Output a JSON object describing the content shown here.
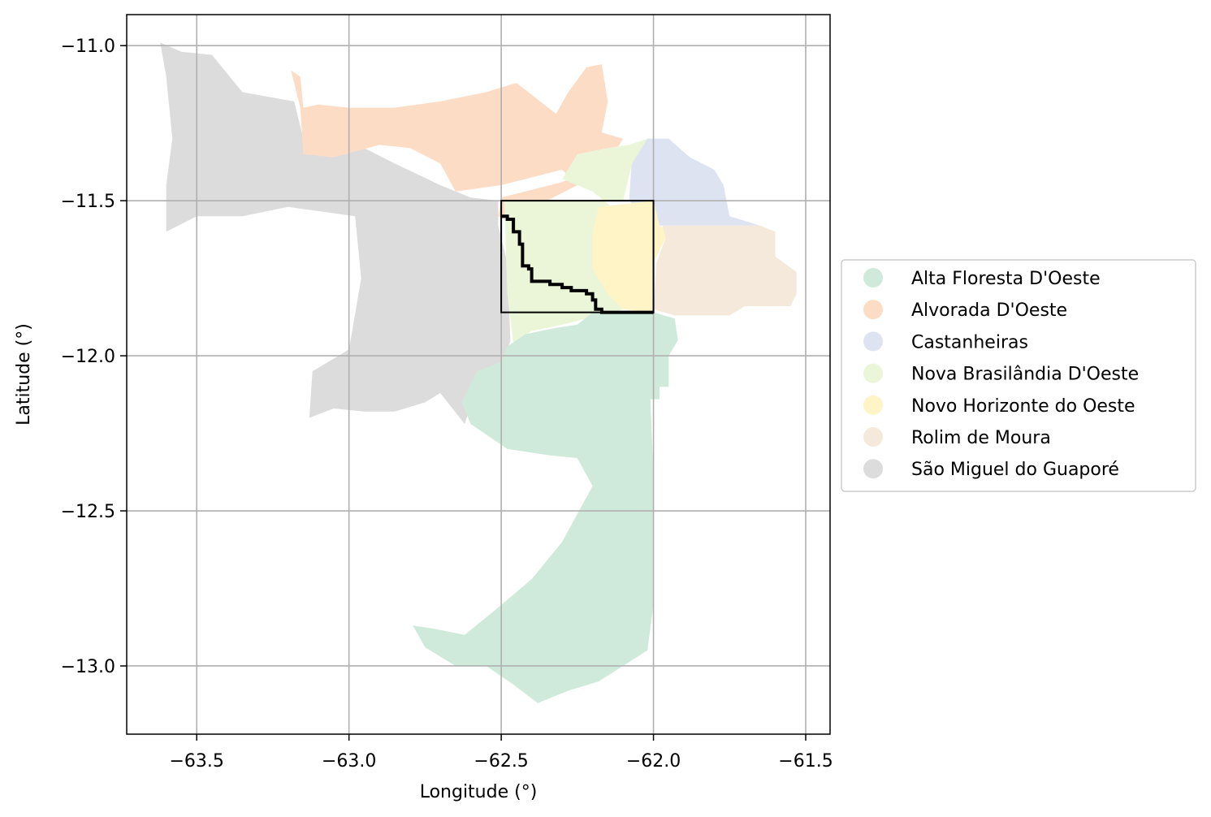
{
  "chart_data": {
    "type": "map",
    "xlabel": "Longitude (°)",
    "ylabel": "Latitude (°)",
    "xlim": [
      -63.73,
      -61.42
    ],
    "ylim": [
      -13.22,
      -10.9
    ],
    "xticks": [
      -63.5,
      -63.0,
      -62.5,
      -62.0,
      -61.5
    ],
    "yticks": [
      -11.0,
      -11.5,
      -12.0,
      -12.5,
      -13.0
    ],
    "xtick_labels": [
      "−63.5",
      "−63.0",
      "−62.5",
      "−62.0",
      "−61.5"
    ],
    "ytick_labels": [
      "−11.0",
      "−11.5",
      "−12.0",
      "−12.5",
      "−13.0"
    ],
    "grid": true,
    "legend_position": "right",
    "legend": [
      {
        "name": "Alta Floresta D'Oeste",
        "color": "#cfeadb"
      },
      {
        "name": "Alvorada D'Oeste",
        "color": "#fcdcc5"
      },
      {
        "name": "Castanheiras",
        "color": "#dde3f1"
      },
      {
        "name": "Nova Brasilândia D'Oeste",
        "color": "#ebf6d9"
      },
      {
        "name": "Novo Horizonte do Oeste",
        "color": "#fff4c6"
      },
      {
        "name": "Rolim de Moura",
        "color": "#f4e9db"
      },
      {
        "name": "São Miguel do Guaporé",
        "color": "#dcdcdc"
      }
    ],
    "regions": [
      {
        "name": "São Miguel do Guaporé",
        "color": "#dcdcdc",
        "polygon": [
          [
            -63.62,
            -10.99
          ],
          [
            -63.55,
            -11.02
          ],
          [
            -63.45,
            -11.03
          ],
          [
            -63.35,
            -11.15
          ],
          [
            -63.18,
            -11.18
          ],
          [
            -63.15,
            -11.3
          ],
          [
            -63.05,
            -11.35
          ],
          [
            -62.95,
            -11.33
          ],
          [
            -62.85,
            -11.38
          ],
          [
            -62.7,
            -11.45
          ],
          [
            -62.6,
            -11.49
          ],
          [
            -62.51,
            -11.5
          ],
          [
            -62.51,
            -11.58
          ],
          [
            -62.48,
            -11.7
          ],
          [
            -62.47,
            -11.95
          ],
          [
            -62.5,
            -12.05
          ],
          [
            -62.58,
            -12.1
          ],
          [
            -62.62,
            -12.22
          ],
          [
            -62.7,
            -12.12
          ],
          [
            -62.75,
            -12.15
          ],
          [
            -62.85,
            -12.18
          ],
          [
            -62.95,
            -12.18
          ],
          [
            -63.05,
            -12.17
          ],
          [
            -63.13,
            -12.2
          ],
          [
            -63.12,
            -12.05
          ],
          [
            -63.0,
            -11.98
          ],
          [
            -62.96,
            -11.75
          ],
          [
            -62.98,
            -11.55
          ],
          [
            -63.2,
            -11.52
          ],
          [
            -63.35,
            -11.55
          ],
          [
            -63.5,
            -11.55
          ],
          [
            -63.6,
            -11.6
          ],
          [
            -63.6,
            -11.45
          ],
          [
            -63.58,
            -11.3
          ],
          [
            -63.6,
            -11.1
          ]
        ]
      },
      {
        "name": "Alvorada D'Oeste",
        "color": "#fcdcc5",
        "polygon": [
          [
            -63.19,
            -11.08
          ],
          [
            -63.16,
            -11.1
          ],
          [
            -63.15,
            -11.2
          ],
          [
            -63.1,
            -11.19
          ],
          [
            -63.0,
            -11.2
          ],
          [
            -62.85,
            -11.2
          ],
          [
            -62.7,
            -11.18
          ],
          [
            -62.55,
            -11.15
          ],
          [
            -62.45,
            -11.12
          ],
          [
            -62.32,
            -11.22
          ],
          [
            -62.28,
            -11.15
          ],
          [
            -62.22,
            -11.07
          ],
          [
            -62.17,
            -11.06
          ],
          [
            -62.15,
            -11.18
          ],
          [
            -62.17,
            -11.28
          ],
          [
            -62.1,
            -11.3
          ],
          [
            -62.15,
            -11.38
          ],
          [
            -62.3,
            -11.44
          ],
          [
            -62.5,
            -11.49
          ],
          [
            -62.51,
            -11.55
          ],
          [
            -62.45,
            -11.58
          ],
          [
            -62.35,
            -11.5
          ],
          [
            -62.25,
            -11.45
          ],
          [
            -62.3,
            -11.4
          ],
          [
            -62.5,
            -11.45
          ],
          [
            -62.65,
            -11.47
          ],
          [
            -62.7,
            -11.38
          ],
          [
            -62.8,
            -11.33
          ],
          [
            -62.9,
            -11.32
          ],
          [
            -63.05,
            -11.36
          ],
          [
            -63.15,
            -11.35
          ],
          [
            -63.16,
            -11.2
          ]
        ]
      },
      {
        "name": "Castanheiras",
        "color": "#dde3f1",
        "polygon": [
          [
            -62.07,
            -11.35
          ],
          [
            -62.02,
            -11.3
          ],
          [
            -61.95,
            -11.3
          ],
          [
            -61.88,
            -11.36
          ],
          [
            -61.8,
            -11.4
          ],
          [
            -61.77,
            -11.45
          ],
          [
            -61.75,
            -11.55
          ],
          [
            -61.65,
            -11.58
          ],
          [
            -62.0,
            -11.58
          ],
          [
            -62.08,
            -11.5
          ]
        ]
      },
      {
        "name": "Nova Brasilândia D'Oeste",
        "color": "#ebf6d9",
        "polygon": [
          [
            -62.15,
            -11.33
          ],
          [
            -62.08,
            -11.32
          ],
          [
            -62.02,
            -11.3
          ],
          [
            -62.07,
            -11.38
          ],
          [
            -62.1,
            -11.5
          ],
          [
            -62.49,
            -11.5
          ],
          [
            -62.48,
            -11.8
          ],
          [
            -62.46,
            -11.96
          ],
          [
            -62.4,
            -11.92
          ],
          [
            -62.3,
            -11.9
          ],
          [
            -62.22,
            -11.88
          ],
          [
            -62.1,
            -11.85
          ],
          [
            -62.12,
            -11.6
          ],
          [
            -62.1,
            -11.55
          ],
          [
            -62.2,
            -11.47
          ],
          [
            -62.3,
            -11.43
          ],
          [
            -62.25,
            -11.35
          ]
        ]
      },
      {
        "name": "Novo Horizonte do Oeste",
        "color": "#fff4c6",
        "polygon": [
          [
            -62.18,
            -11.52
          ],
          [
            -62.0,
            -11.5
          ],
          [
            -61.98,
            -11.58
          ],
          [
            -61.95,
            -11.6
          ],
          [
            -62.0,
            -11.7
          ],
          [
            -62.0,
            -11.86
          ],
          [
            -62.1,
            -11.85
          ],
          [
            -62.15,
            -11.8
          ],
          [
            -62.2,
            -11.72
          ],
          [
            -62.2,
            -11.6
          ]
        ]
      },
      {
        "name": "Rolim de Moura",
        "color": "#f4e9db",
        "polygon": [
          [
            -61.97,
            -11.58
          ],
          [
            -61.65,
            -11.58
          ],
          [
            -61.6,
            -11.6
          ],
          [
            -61.6,
            -11.68
          ],
          [
            -61.53,
            -11.73
          ],
          [
            -61.53,
            -11.8
          ],
          [
            -61.55,
            -11.84
          ],
          [
            -61.7,
            -11.84
          ],
          [
            -61.75,
            -11.87
          ],
          [
            -61.93,
            -11.87
          ],
          [
            -62.0,
            -11.85
          ],
          [
            -61.99,
            -11.7
          ],
          [
            -61.96,
            -11.62
          ]
        ]
      },
      {
        "name": "Alta Floresta D'Oeste",
        "color": "#cfeadb",
        "polygon": [
          [
            -62.48,
            -11.97
          ],
          [
            -62.42,
            -11.93
          ],
          [
            -62.32,
            -11.91
          ],
          [
            -62.25,
            -11.9
          ],
          [
            -62.2,
            -11.86
          ],
          [
            -62.1,
            -11.86
          ],
          [
            -62.0,
            -11.86
          ],
          [
            -61.93,
            -11.88
          ],
          [
            -61.92,
            -11.95
          ],
          [
            -61.95,
            -12.0
          ],
          [
            -61.95,
            -12.1
          ],
          [
            -61.98,
            -12.1
          ],
          [
            -61.98,
            -12.14
          ],
          [
            -62.01,
            -12.14
          ],
          [
            -62.0,
            -12.4
          ],
          [
            -62.0,
            -12.8
          ],
          [
            -62.02,
            -12.95
          ],
          [
            -62.1,
            -13.0
          ],
          [
            -62.18,
            -13.05
          ],
          [
            -62.28,
            -13.08
          ],
          [
            -62.38,
            -13.12
          ],
          [
            -62.46,
            -13.06
          ],
          [
            -62.55,
            -13.0
          ],
          [
            -62.65,
            -13.0
          ],
          [
            -62.75,
            -12.94
          ],
          [
            -62.79,
            -12.87
          ],
          [
            -62.72,
            -12.88
          ],
          [
            -62.62,
            -12.9
          ],
          [
            -62.52,
            -12.82
          ],
          [
            -62.4,
            -12.72
          ],
          [
            -62.3,
            -12.6
          ],
          [
            -62.2,
            -12.42
          ],
          [
            -62.25,
            -12.33
          ],
          [
            -62.35,
            -12.32
          ],
          [
            -62.48,
            -12.3
          ],
          [
            -62.6,
            -12.22
          ],
          [
            -62.63,
            -12.15
          ],
          [
            -62.58,
            -12.05
          ],
          [
            -62.5,
            -12.02
          ]
        ]
      }
    ],
    "selection_box": {
      "lon": [
        -62.5,
        -62.0
      ],
      "lat": [
        -11.86,
        -11.5
      ]
    },
    "boundary_path": [
      [
        -62.5,
        -11.55
      ],
      [
        -62.48,
        -11.56
      ],
      [
        -62.46,
        -11.6
      ],
      [
        -62.44,
        -11.64
      ],
      [
        -62.43,
        -11.71
      ],
      [
        -62.41,
        -11.72
      ],
      [
        -62.4,
        -11.76
      ],
      [
        -62.34,
        -11.77
      ],
      [
        -62.3,
        -11.78
      ],
      [
        -62.27,
        -11.79
      ],
      [
        -62.22,
        -11.8
      ],
      [
        -62.2,
        -11.82
      ],
      [
        -62.19,
        -11.85
      ],
      [
        -62.17,
        -11.86
      ],
      [
        -62.0,
        -11.86
      ]
    ]
  }
}
